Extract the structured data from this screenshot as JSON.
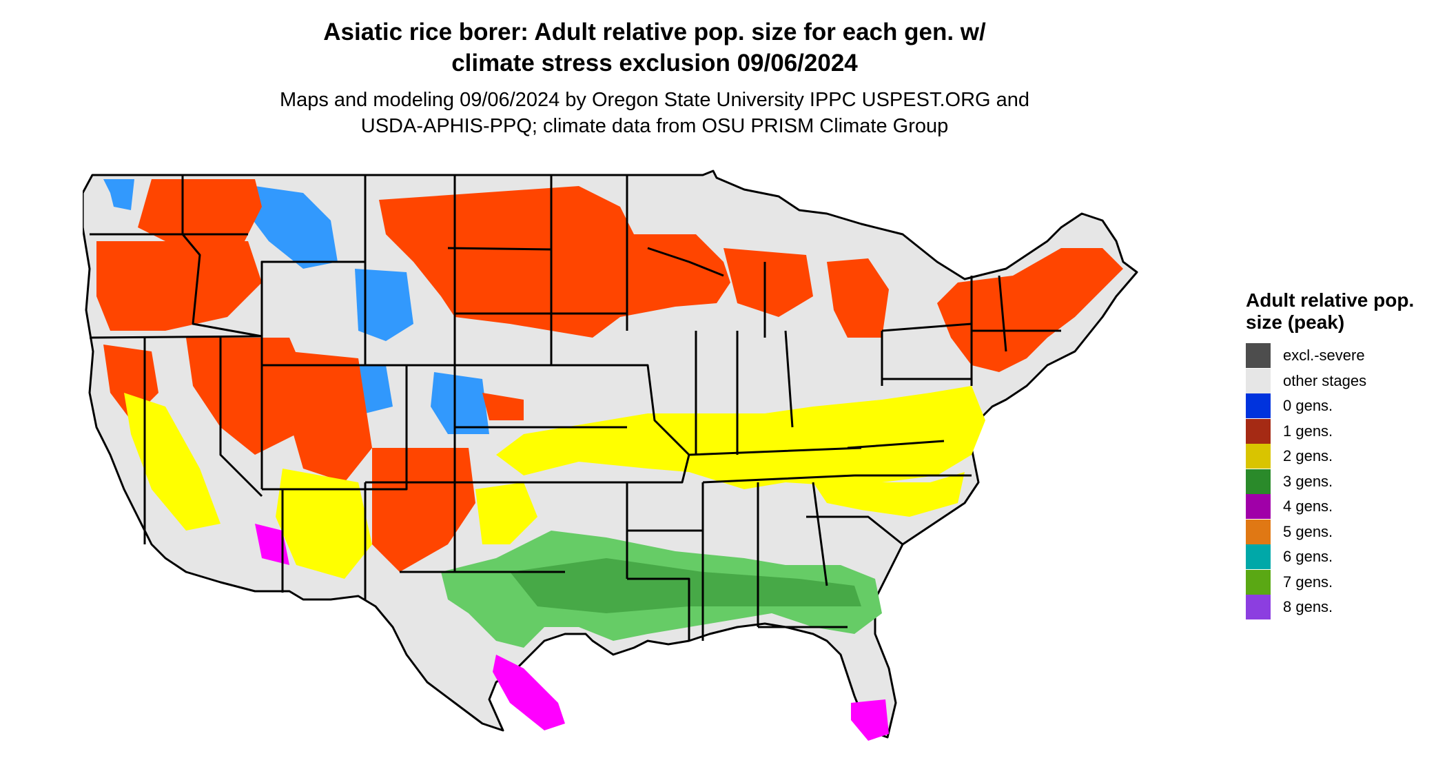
{
  "title": {
    "line1": "Asiatic rice borer: Adult relative pop. size for each gen. w/",
    "line2": "climate stress exclusion 09/06/2024"
  },
  "subtitle": {
    "line1": "Maps and modeling 09/06/2024 by Oregon State University IPPC USPEST.ORG and",
    "line2": "USDA-APHIS-PPQ; climate data from OSU PRISM Climate Group"
  },
  "legend": {
    "title": "Adult relative pop. size (peak)",
    "items": [
      {
        "label": "excl.-severe",
        "color": "#4d4d4d"
      },
      {
        "label": "other stages",
        "color": "#e6e6e6"
      },
      {
        "label": "0 gens.",
        "color": "#0033dd"
      },
      {
        "label": "1 gens.",
        "color": "#a52a14"
      },
      {
        "label": "2 gens.",
        "color": "#d9c400"
      },
      {
        "label": "3 gens.",
        "color": "#2a8a2a"
      },
      {
        "label": "4 gens.",
        "color": "#a000a8"
      },
      {
        "label": "5 gens.",
        "color": "#e07814"
      },
      {
        "label": "6 gens.",
        "color": "#00a8a8"
      },
      {
        "label": "7 gens.",
        "color": "#5aa814"
      },
      {
        "label": "8 gens.",
        "color": "#8c3ee0"
      }
    ]
  },
  "map_colors": {
    "land": "#e6e6e6",
    "one_gen": "#ff4500",
    "zero_gen": "#1e90ff",
    "two_gen": "#ffff00",
    "three_gen": "#66cc66",
    "three_gen_dark": "#3a9a3a",
    "four_gen": "#ff00ff",
    "borders": "#000000"
  }
}
